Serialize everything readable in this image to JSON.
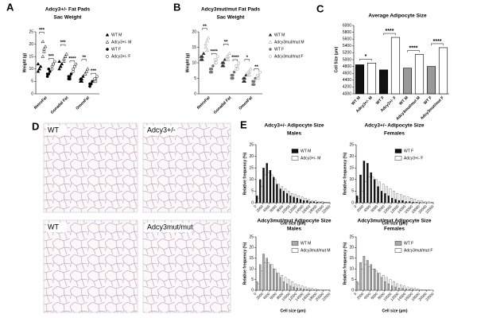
{
  "chart_data": [
    {
      "type": "dotplot",
      "panel": "A",
      "title": "Adcy3+/- Fat Pads",
      "subtitle": "Sac Weight",
      "ylabel": "Weight (g)",
      "categories": [
        "RetroFat",
        "Gonadal Fat",
        "OmenFat"
      ],
      "ylim": [
        0,
        25
      ],
      "yticks": [
        0,
        5,
        10,
        15,
        20,
        25
      ],
      "series": [
        {
          "name": "WT M",
          "color": "#000000",
          "marker": "triangle-filled",
          "values": [
            [
              9,
              10,
              11,
              12,
              10
            ],
            [
              10,
              11,
              12,
              13,
              11
            ],
            [
              5,
              6,
              7,
              6,
              5
            ]
          ]
        },
        {
          "name": "Adcy3+/- M",
          "color": "#000000",
          "marker": "triangle-open",
          "values": [
            [
              15,
              17,
              19,
              21,
              18
            ],
            [
              14,
              15,
              16,
              13,
              15
            ],
            [
              8,
              9,
              10,
              8,
              9
            ]
          ]
        },
        {
          "name": "WT F",
          "color": "#000000",
          "marker": "circle-filled",
          "values": [
            [
              7,
              8,
              9,
              8,
              10
            ],
            [
              6,
              7,
              8,
              7,
              6
            ],
            [
              3,
              4,
              5,
              4,
              4
            ]
          ]
        },
        {
          "name": "Adcy3+/- F",
          "color": "#000000",
          "marker": "circle-open",
          "values": [
            [
              11,
              12,
              13,
              10,
              12
            ],
            [
              10,
              11,
              12,
              9,
              11
            ],
            [
              5,
              6,
              7,
              6,
              5
            ]
          ]
        }
      ],
      "significance": [
        [
          "***",
          "***"
        ],
        [
          "***",
          "****"
        ],
        [
          "**",
          "***"
        ]
      ]
    },
    {
      "type": "dotplot",
      "panel": "B",
      "title": "Adcy3mut/mut Fat Pads",
      "subtitle": "Sac Weight",
      "ylabel": "Weight (g)",
      "categories": [
        "RetroFat",
        "Gonadal Fat",
        "OmenFat"
      ],
      "ylim": [
        0,
        20
      ],
      "yticks": [
        0,
        5,
        10,
        15,
        20
      ],
      "series": [
        {
          "name": "WT M",
          "color": "#333333",
          "marker": "triangle-filled",
          "values": [
            [
              11,
              12,
              13,
              12,
              11
            ],
            [
              9,
              10,
              11,
              10,
              9
            ],
            [
              4,
              5,
              6,
              5,
              4
            ]
          ]
        },
        {
          "name": "Adcy3mut/mut M",
          "color": "#999999",
          "marker": "triangle-open",
          "values": [
            [
              15,
              17,
              18,
              16,
              14
            ],
            [
              11,
              12,
              13,
              12,
              11
            ],
            [
              6,
              7,
              8,
              7,
              6
            ]
          ]
        },
        {
          "name": "WT F",
          "color": "#777777",
          "marker": "circle-filled",
          "values": [
            [
              7,
              8,
              9,
              8,
              7
            ],
            [
              5,
              6,
              7,
              6,
              5
            ],
            [
              3,
              4,
              5,
              4,
              3
            ]
          ]
        },
        {
          "name": "Adcy3mut/mut F",
          "color": "#999999",
          "marker": "circle-open",
          "values": [
            [
              10,
              11,
              12,
              11,
              10
            ],
            [
              8,
              9,
              10,
              9,
              8
            ],
            [
              5,
              6,
              7,
              6,
              5
            ]
          ]
        }
      ],
      "significance": [
        [
          "**",
          "****"
        ],
        [
          "**",
          "****"
        ],
        [
          "*",
          "**"
        ]
      ]
    },
    {
      "type": "bar",
      "panel": "C",
      "title": "Average Adipocyte Size",
      "ylabel": "Cell Size (µm)",
      "categories": [
        "WT M",
        "Adcy3+/- M",
        "WT F",
        "Adcy3+/- F",
        "WT M",
        "Adcy3mut/mut M",
        "WT F",
        "Adcy3mut/mut F"
      ],
      "values": [
        4850,
        4900,
        4700,
        5650,
        4750,
        5150,
        4800,
        5350
      ],
      "colors": [
        "#111111",
        "#ffffff",
        "#111111",
        "#ffffff",
        "#999999",
        "#ffffff",
        "#999999",
        "#ffffff"
      ],
      "ylim": [
        4000,
        6000
      ],
      "yticks": [
        4000,
        4200,
        4400,
        4600,
        4800,
        5000,
        5200,
        5400,
        5600,
        5800,
        6000
      ],
      "significance": [
        "*",
        "****",
        "****",
        "****"
      ]
    },
    {
      "type": "histogram",
      "panel": "E",
      "title": "Adcy3+/- Adipocyte Size",
      "subtitle": "Males",
      "xlabel": "Cell size (µm)",
      "ylabel": "Relative frequency (%)",
      "bins": [
        0,
        1000,
        2000,
        3000,
        4000,
        5000,
        6000,
        7000,
        8000,
        9000,
        10000,
        11000,
        12000,
        13000,
        14000,
        15000,
        16000,
        17000,
        18000,
        19000,
        20000,
        21000,
        22000
      ],
      "xlim": [
        0,
        22000
      ],
      "xticks": [
        0,
        2000,
        4000,
        6000,
        8000,
        10000,
        12000,
        14000,
        16000,
        18000,
        20000,
        22000
      ],
      "ylim": [
        0,
        25
      ],
      "yticks": [
        0,
        5,
        10,
        15,
        20,
        25
      ],
      "series": [
        {
          "name": "WT M",
          "color": "#111111",
          "values": [
            3,
            10,
            15,
            17,
            14,
            11,
            8,
            6,
            5,
            4,
            3,
            2.5,
            2,
            1.5,
            1,
            1,
            0.5,
            0.5,
            0.3,
            0.2,
            0.1,
            0.1
          ]
        },
        {
          "name": "Adcy3+/- M",
          "color": "#ffffff",
          "values": [
            2,
            7,
            12,
            13,
            12,
            10,
            8,
            7,
            6,
            5,
            4,
            3.5,
            3,
            2.5,
            2,
            1.5,
            1,
            1,
            0.5,
            0.5,
            0.3,
            0.2
          ]
        }
      ]
    },
    {
      "type": "histogram",
      "title": "Adcy3+/- Adipocyte Size",
      "subtitle": "Females",
      "xlabel": "Cell size (µm)",
      "ylabel": "Relative frequency (%)",
      "bins": [
        0,
        1000,
        2000,
        3000,
        4000,
        5000,
        6000,
        7000,
        8000,
        9000,
        10000,
        11000,
        12000,
        13000,
        14000,
        15000,
        16000,
        17000,
        18000,
        19000,
        20000,
        21000,
        22000
      ],
      "xlim": [
        0,
        22000
      ],
      "xticks": [
        0,
        2000,
        4000,
        6000,
        8000,
        10000,
        12000,
        14000,
        16000,
        18000,
        20000,
        22000
      ],
      "ylim": [
        0,
        25
      ],
      "yticks": [
        0,
        5,
        10,
        15,
        20,
        25
      ],
      "series": [
        {
          "name": "WT F",
          "color": "#111111",
          "values": [
            3,
            12,
            18,
            17,
            13,
            10,
            7,
            5,
            4,
            3,
            2,
            1.5,
            1,
            1,
            0.5,
            0.5,
            0.3,
            0.2,
            0.1,
            0.1,
            0,
            0
          ]
        },
        {
          "name": "Adcy3+/- F",
          "color": "#ffffff",
          "values": [
            2,
            5,
            9,
            11,
            11,
            10,
            9,
            8,
            7,
            6,
            5,
            4,
            3.5,
            3,
            2.5,
            2,
            1.5,
            1,
            1,
            0.5,
            0.5,
            0.3
          ]
        }
      ]
    },
    {
      "type": "histogram",
      "title": "Adcy3mut/mut Adipocyte Size",
      "subtitle": "Males",
      "xlabel": "Cell size (µm)",
      "ylabel": "Relative frequency (%)",
      "bins": [
        0,
        1000,
        2000,
        3000,
        4000,
        5000,
        6000,
        7000,
        8000,
        9000,
        10000,
        11000,
        12000,
        13000,
        14000,
        15000,
        16000,
        17000,
        18000,
        19000,
        20000,
        21000,
        22000
      ],
      "xlim": [
        0,
        22000
      ],
      "xticks": [
        0,
        2000,
        4000,
        6000,
        8000,
        10000,
        12000,
        14000,
        16000,
        18000,
        20000,
        22000
      ],
      "ylim": [
        0,
        25
      ],
      "yticks": [
        0,
        5,
        10,
        15,
        20,
        25
      ],
      "series": [
        {
          "name": "WT M",
          "color": "#aaaaaa",
          "values": [
            4,
            12,
            17,
            15,
            12,
            10,
            8,
            6,
            4,
            3,
            2,
            1.5,
            1,
            0.8,
            0.5,
            0.3,
            0.2,
            0.1,
            0.1,
            0,
            0,
            0
          ]
        },
        {
          "name": "Adcy3mut/mut M",
          "color": "#ffffff",
          "values": [
            3,
            9,
            13,
            13,
            12,
            10,
            8,
            7,
            6,
            5,
            4,
            3,
            2.5,
            2,
            1.5,
            1,
            0.8,
            0.5,
            0.3,
            0.2,
            0.1,
            0.1
          ]
        }
      ]
    },
    {
      "type": "histogram",
      "title": "Adcy3mut/mut Adipocyte Size",
      "subtitle": "Females",
      "xlabel": "Cell size (µm)",
      "ylabel": "Relative frequency (%)",
      "bins": [
        0,
        1000,
        2000,
        3000,
        4000,
        5000,
        6000,
        7000,
        8000,
        9000,
        10000,
        11000,
        12000,
        13000,
        14000,
        15000,
        16000,
        17000,
        18000,
        19000,
        20000,
        21000,
        22000
      ],
      "xlim": [
        0,
        22000
      ],
      "xticks": [
        0,
        2000,
        4000,
        6000,
        8000,
        10000,
        12000,
        14000,
        16000,
        18000,
        20000,
        22000
      ],
      "ylim": [
        0,
        25
      ],
      "yticks": [
        0,
        5,
        10,
        15,
        20,
        25
      ],
      "series": [
        {
          "name": "WT F",
          "color": "#aaaaaa",
          "values": [
            4,
            13,
            16,
            14,
            12,
            10,
            8,
            6,
            4,
            3,
            2,
            1.5,
            1,
            0.8,
            0.5,
            0.3,
            0.2,
            0.1,
            0,
            0,
            0,
            0
          ]
        },
        {
          "name": "Adcy3mut/mut F",
          "color": "#ffffff",
          "values": [
            3,
            10,
            12,
            11,
            10,
            9,
            8,
            7,
            6,
            5,
            4,
            3,
            2.5,
            2,
            1.5,
            1,
            0.8,
            0.5,
            0.3,
            0.2,
            0.1,
            0
          ]
        }
      ]
    }
  ],
  "micrographs": {
    "panel": "D",
    "labels": [
      "WT",
      "Adcy3+/-",
      "WT",
      "Adcy3mut/mut"
    ]
  }
}
